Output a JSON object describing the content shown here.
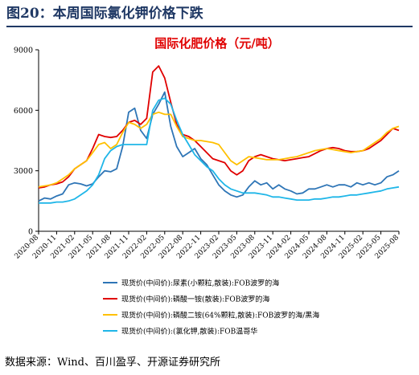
{
  "figure": {
    "label": "图20：本周国际氯化钾价格下跌",
    "source": "数据来源：Wind、百川盈孚、开源证券研究所"
  },
  "chart_data": {
    "type": "line",
    "title": "国际化肥价格（元/吨）",
    "ylim": [
      0,
      9000
    ],
    "yticks": [
      0,
      3000,
      6000,
      9000
    ],
    "xticks": [
      "2020-08",
      "2020-11",
      "2021-02",
      "2021-05",
      "2021-08",
      "2021-11",
      "2022-02",
      "2022-05",
      "2022-08",
      "2022-11",
      "2023-02",
      "2023-05",
      "2023-08",
      "2023-11",
      "2024-02",
      "2024-05",
      "2024-08",
      "2024-11",
      "2025-02",
      "2025-05",
      "2025-08"
    ],
    "grid": false,
    "legend_position": "bottom",
    "series": [
      {
        "name": "现货价(中间价):尿素(小颗粒,散装):FOB波罗的海",
        "color": "#2e75b6",
        "points": [
          [
            "2020-08",
            1500
          ],
          [
            "2020-09",
            1650
          ],
          [
            "2020-10",
            1600
          ],
          [
            "2020-11",
            1750
          ],
          [
            "2020-12",
            1850
          ],
          [
            "2021-01",
            2300
          ],
          [
            "2021-02",
            2400
          ],
          [
            "2021-03",
            2350
          ],
          [
            "2021-04",
            2250
          ],
          [
            "2021-05",
            2350
          ],
          [
            "2021-06",
            2700
          ],
          [
            "2021-07",
            3000
          ],
          [
            "2021-08",
            2950
          ],
          [
            "2021-09",
            3100
          ],
          [
            "2021-10",
            4200
          ],
          [
            "2021-11",
            5900
          ],
          [
            "2021-12",
            6100
          ],
          [
            "2022-01",
            5000
          ],
          [
            "2022-02",
            4600
          ],
          [
            "2022-03",
            5800
          ],
          [
            "2022-04",
            6300
          ],
          [
            "2022-05",
            6900
          ],
          [
            "2022-06",
            5200
          ],
          [
            "2022-07",
            4200
          ],
          [
            "2022-08",
            3700
          ],
          [
            "2022-09",
            3900
          ],
          [
            "2022-10",
            4100
          ],
          [
            "2022-11",
            3600
          ],
          [
            "2022-12",
            3300
          ],
          [
            "2023-01",
            2800
          ],
          [
            "2023-02",
            2300
          ],
          [
            "2023-03",
            2000
          ],
          [
            "2023-04",
            1800
          ],
          [
            "2023-05",
            1700
          ],
          [
            "2023-06",
            1800
          ],
          [
            "2023-07",
            2200
          ],
          [
            "2023-08",
            2500
          ],
          [
            "2023-09",
            2300
          ],
          [
            "2023-10",
            2400
          ],
          [
            "2023-11",
            2100
          ],
          [
            "2023-12",
            2300
          ],
          [
            "2024-01",
            2100
          ],
          [
            "2024-02",
            2000
          ],
          [
            "2024-03",
            1850
          ],
          [
            "2024-04",
            1900
          ],
          [
            "2024-05",
            2100
          ],
          [
            "2024-06",
            2100
          ],
          [
            "2024-07",
            2200
          ],
          [
            "2024-08",
            2300
          ],
          [
            "2024-09",
            2200
          ],
          [
            "2024-10",
            2300
          ],
          [
            "2024-11",
            2300
          ],
          [
            "2024-12",
            2200
          ],
          [
            "2025-01",
            2400
          ],
          [
            "2025-02",
            2300
          ],
          [
            "2025-03",
            2400
          ],
          [
            "2025-04",
            2300
          ],
          [
            "2025-05",
            2400
          ],
          [
            "2025-06",
            2700
          ],
          [
            "2025-07",
            2800
          ],
          [
            "2025-08",
            3000
          ]
        ]
      },
      {
        "name": "现货价(中间价):磷酸一铵(散装):FOB波罗的海",
        "color": "#e00000",
        "points": [
          [
            "2020-08",
            2150
          ],
          [
            "2020-09",
            2200
          ],
          [
            "2020-10",
            2300
          ],
          [
            "2020-11",
            2350
          ],
          [
            "2020-12",
            2450
          ],
          [
            "2021-01",
            2700
          ],
          [
            "2021-02",
            3100
          ],
          [
            "2021-03",
            3300
          ],
          [
            "2021-04",
            3500
          ],
          [
            "2021-05",
            4100
          ],
          [
            "2021-06",
            4800
          ],
          [
            "2021-07",
            4700
          ],
          [
            "2021-08",
            4650
          ],
          [
            "2021-09",
            4700
          ],
          [
            "2021-10",
            5000
          ],
          [
            "2021-11",
            5400
          ],
          [
            "2021-12",
            5500
          ],
          [
            "2022-01",
            5300
          ],
          [
            "2022-02",
            5600
          ],
          [
            "2022-03",
            7900
          ],
          [
            "2022-04",
            8200
          ],
          [
            "2022-05",
            7600
          ],
          [
            "2022-06",
            6400
          ],
          [
            "2022-07",
            5300
          ],
          [
            "2022-08",
            4800
          ],
          [
            "2022-09",
            4700
          ],
          [
            "2022-10",
            4500
          ],
          [
            "2022-11",
            4200
          ],
          [
            "2022-12",
            3900
          ],
          [
            "2023-01",
            3600
          ],
          [
            "2023-02",
            3500
          ],
          [
            "2023-03",
            3400
          ],
          [
            "2023-04",
            3000
          ],
          [
            "2023-05",
            2800
          ],
          [
            "2023-06",
            3000
          ],
          [
            "2023-07",
            3500
          ],
          [
            "2023-08",
            3700
          ],
          [
            "2023-09",
            3800
          ],
          [
            "2023-10",
            3700
          ],
          [
            "2023-11",
            3600
          ],
          [
            "2023-12",
            3550
          ],
          [
            "2024-01",
            3500
          ],
          [
            "2024-02",
            3550
          ],
          [
            "2024-03",
            3600
          ],
          [
            "2024-04",
            3650
          ],
          [
            "2024-05",
            3700
          ],
          [
            "2024-06",
            3850
          ],
          [
            "2024-07",
            4000
          ],
          [
            "2024-08",
            4100
          ],
          [
            "2024-09",
            4150
          ],
          [
            "2024-10",
            4100
          ],
          [
            "2024-11",
            4000
          ],
          [
            "2024-12",
            3950
          ],
          [
            "2025-01",
            3950
          ],
          [
            "2025-02",
            4000
          ],
          [
            "2025-03",
            4100
          ],
          [
            "2025-04",
            4300
          ],
          [
            "2025-05",
            4500
          ],
          [
            "2025-06",
            4800
          ],
          [
            "2025-07",
            5100
          ],
          [
            "2025-08",
            5000
          ]
        ]
      },
      {
        "name": "现货价(中间价):磷酸二铵(64%颗粒,散装):FOB波罗的海/黑海",
        "color": "#ffc000",
        "points": [
          [
            "2020-08",
            2200
          ],
          [
            "2020-09",
            2250
          ],
          [
            "2020-10",
            2300
          ],
          [
            "2020-11",
            2400
          ],
          [
            "2020-12",
            2600
          ],
          [
            "2021-01",
            2800
          ],
          [
            "2021-02",
            3100
          ],
          [
            "2021-03",
            3300
          ],
          [
            "2021-04",
            3500
          ],
          [
            "2021-05",
            3900
          ],
          [
            "2021-06",
            4300
          ],
          [
            "2021-07",
            4400
          ],
          [
            "2021-08",
            4100
          ],
          [
            "2021-09",
            4300
          ],
          [
            "2021-10",
            4900
          ],
          [
            "2021-11",
            5400
          ],
          [
            "2021-12",
            5300
          ],
          [
            "2022-01",
            5100
          ],
          [
            "2022-02",
            5300
          ],
          [
            "2022-03",
            5800
          ],
          [
            "2022-04",
            5900
          ],
          [
            "2022-05",
            5800
          ],
          [
            "2022-06",
            5800
          ],
          [
            "2022-07",
            5200
          ],
          [
            "2022-08",
            4700
          ],
          [
            "2022-09",
            4600
          ],
          [
            "2022-10",
            4500
          ],
          [
            "2022-11",
            4500
          ],
          [
            "2022-12",
            4450
          ],
          [
            "2023-01",
            4400
          ],
          [
            "2023-02",
            4300
          ],
          [
            "2023-03",
            3900
          ],
          [
            "2023-04",
            3500
          ],
          [
            "2023-05",
            3300
          ],
          [
            "2023-06",
            3500
          ],
          [
            "2023-07",
            3700
          ],
          [
            "2023-08",
            3650
          ],
          [
            "2023-09",
            3600
          ],
          [
            "2023-10",
            3550
          ],
          [
            "2023-11",
            3550
          ],
          [
            "2023-12",
            3550
          ],
          [
            "2024-01",
            3600
          ],
          [
            "2024-02",
            3650
          ],
          [
            "2024-03",
            3700
          ],
          [
            "2024-04",
            3800
          ],
          [
            "2024-05",
            3900
          ],
          [
            "2024-06",
            4000
          ],
          [
            "2024-07",
            4050
          ],
          [
            "2024-08",
            4100
          ],
          [
            "2024-09",
            4050
          ],
          [
            "2024-10",
            4000
          ],
          [
            "2024-11",
            3950
          ],
          [
            "2024-12",
            3900
          ],
          [
            "2025-01",
            3950
          ],
          [
            "2025-02",
            4000
          ],
          [
            "2025-03",
            4200
          ],
          [
            "2025-04",
            4400
          ],
          [
            "2025-05",
            4600
          ],
          [
            "2025-06",
            4900
          ],
          [
            "2025-07",
            5100
          ],
          [
            "2025-08",
            5200
          ]
        ]
      },
      {
        "name": "现货价(中间价):(氯化钾,散装):FOB温哥华",
        "color": "#1fb6e8",
        "points": [
          [
            "2020-08",
            1400
          ],
          [
            "2020-09",
            1400
          ],
          [
            "2020-10",
            1400
          ],
          [
            "2020-11",
            1450
          ],
          [
            "2020-12",
            1450
          ],
          [
            "2021-01",
            1500
          ],
          [
            "2021-02",
            1600
          ],
          [
            "2021-03",
            1800
          ],
          [
            "2021-04",
            2000
          ],
          [
            "2021-05",
            2300
          ],
          [
            "2021-06",
            2800
          ],
          [
            "2021-07",
            3600
          ],
          [
            "2021-08",
            4000
          ],
          [
            "2021-09",
            4200
          ],
          [
            "2021-10",
            4300
          ],
          [
            "2021-11",
            4300
          ],
          [
            "2021-12",
            4300
          ],
          [
            "2022-01",
            4300
          ],
          [
            "2022-02",
            4300
          ],
          [
            "2022-03",
            6000
          ],
          [
            "2022-04",
            6500
          ],
          [
            "2022-05",
            6600
          ],
          [
            "2022-06",
            6300
          ],
          [
            "2022-07",
            5500
          ],
          [
            "2022-08",
            4800
          ],
          [
            "2022-09",
            4300
          ],
          [
            "2022-10",
            3800
          ],
          [
            "2022-11",
            3500
          ],
          [
            "2022-12",
            3200
          ],
          [
            "2023-01",
            3000
          ],
          [
            "2023-02",
            2600
          ],
          [
            "2023-03",
            2300
          ],
          [
            "2023-04",
            2100
          ],
          [
            "2023-05",
            2000
          ],
          [
            "2023-06",
            1900
          ],
          [
            "2023-07",
            1900
          ],
          [
            "2023-08",
            1900
          ],
          [
            "2023-09",
            1850
          ],
          [
            "2023-10",
            1800
          ],
          [
            "2023-11",
            1700
          ],
          [
            "2023-12",
            1700
          ],
          [
            "2024-01",
            1650
          ],
          [
            "2024-02",
            1600
          ],
          [
            "2024-03",
            1550
          ],
          [
            "2024-04",
            1550
          ],
          [
            "2024-05",
            1550
          ],
          [
            "2024-06",
            1600
          ],
          [
            "2024-07",
            1600
          ],
          [
            "2024-08",
            1650
          ],
          [
            "2024-09",
            1700
          ],
          [
            "2024-10",
            1700
          ],
          [
            "2024-11",
            1750
          ],
          [
            "2024-12",
            1800
          ],
          [
            "2025-01",
            1800
          ],
          [
            "2025-02",
            1850
          ],
          [
            "2025-03",
            1900
          ],
          [
            "2025-04",
            1950
          ],
          [
            "2025-05",
            2000
          ],
          [
            "2025-06",
            2100
          ],
          [
            "2025-07",
            2150
          ],
          [
            "2025-08",
            2200
          ]
        ]
      }
    ]
  }
}
